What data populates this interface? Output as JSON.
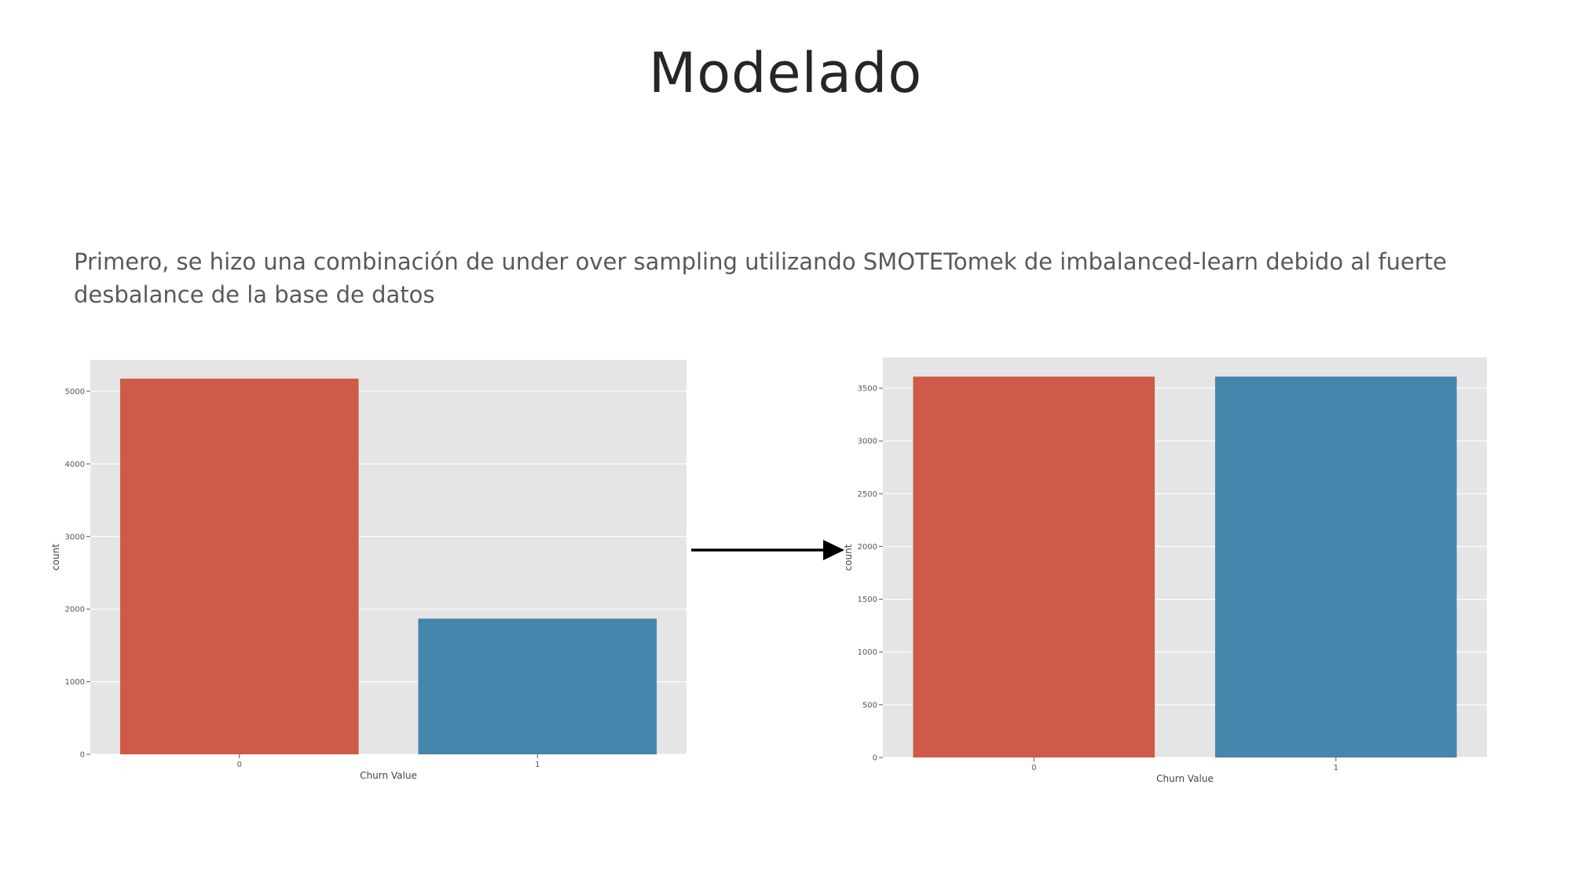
{
  "slide": {
    "title": "Modelado",
    "body": "Primero, se hizo una combinación de under over sampling utilizando SMOTETomek de imbalanced-learn debido al fuerte desbalance de la base de datos"
  },
  "colors": {
    "class0": "#CE5A47",
    "class1": "#4586AC",
    "plot_bg": "#E5E5E5",
    "grid": "#FFFFFF",
    "tick": "#555555"
  },
  "arrow": {
    "icon": "right-arrow-icon"
  },
  "chart_data": [
    {
      "type": "bar",
      "categories": [
        "0",
        "1"
      ],
      "values": [
        5174,
        1869
      ],
      "colors": [
        "#CE5A47",
        "#4586AC"
      ],
      "xlabel": "Churn Value",
      "ylabel": "count",
      "ylim": [
        0,
        5432
      ],
      "yticks": [
        0,
        1000,
        2000,
        3000,
        4000,
        5000
      ],
      "grid": true
    },
    {
      "type": "bar",
      "categories": [
        "0",
        "1"
      ],
      "values": [
        3610,
        3610
      ],
      "colors": [
        "#CE5A47",
        "#4586AC"
      ],
      "xlabel": "Churn Value",
      "ylabel": "count",
      "ylim": [
        0,
        3791
      ],
      "yticks": [
        0,
        500,
        1000,
        1500,
        2000,
        2500,
        3000,
        3500
      ],
      "grid": true
    }
  ]
}
